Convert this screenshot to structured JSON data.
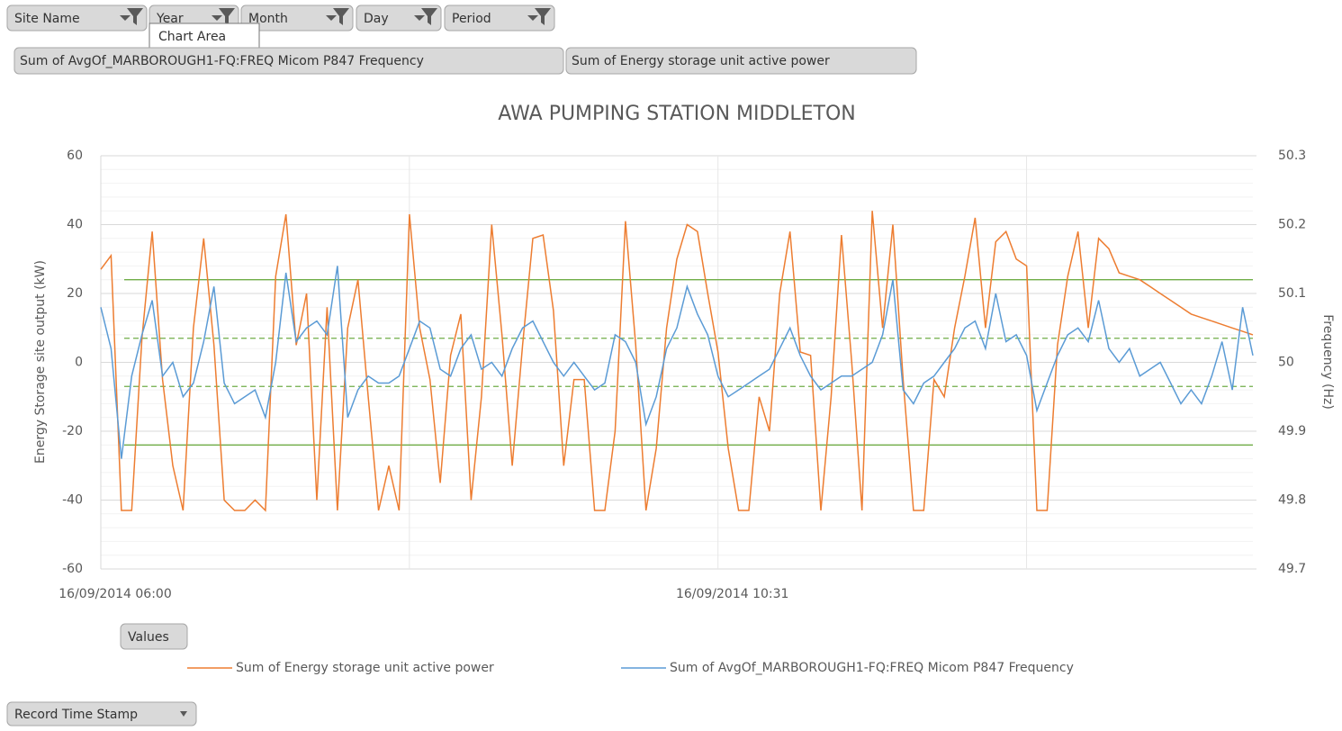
{
  "filters": [
    "Site Name",
    "Year",
    "Month",
    "Day",
    "Period"
  ],
  "tooltip": "Chart Area",
  "value_fields": [
    "Sum of AvgOf_MARBOROUGH1-FQ:FREQ Micom P847 Frequency",
    "Sum of Energy storage unit active power"
  ],
  "values_button": "Values",
  "axis_field": "Record Time Stamp",
  "chart_data": {
    "type": "line",
    "title": "AWA PUMPING STATION MIDDLETON",
    "y_label": "Energy Storage site output (kW)",
    "y2_label": "Frequency (Hz)",
    "ylim": [
      -60,
      60
    ],
    "yticks": [
      -60,
      -40,
      -20,
      0,
      20,
      40,
      60
    ],
    "y2lim": [
      49.7,
      50.3
    ],
    "y2ticks": [
      49.7,
      49.8,
      49.9,
      {
        "value": 50,
        "label": "50"
      },
      50.1,
      50.2,
      50.3
    ],
    "grid": true,
    "legend": "bottom",
    "categories": [
      "16/09/2014 06:00",
      null,
      null,
      null,
      null,
      null,
      null,
      null,
      null,
      null,
      null,
      null,
      null,
      null,
      null,
      null,
      null,
      null,
      null,
      null,
      null,
      null,
      null,
      null,
      null,
      null,
      null,
      null,
      null,
      null,
      null,
      null,
      null,
      null,
      null,
      null,
      null,
      null,
      null,
      null,
      null,
      null,
      null,
      null,
      null,
      null,
      null,
      null,
      null,
      null,
      null,
      null,
      null,
      null,
      null,
      null,
      null,
      null,
      null,
      null,
      "16/09/2014 10:31",
      null,
      null,
      null,
      null,
      null,
      null,
      null,
      null,
      null,
      null,
      null,
      null,
      null,
      null,
      null,
      null,
      null,
      null,
      null,
      null,
      null,
      null,
      null,
      null,
      null,
      null,
      null,
      null,
      null,
      null,
      null,
      null,
      null,
      null,
      null,
      null,
      null,
      null,
      null,
      null,
      null,
      null,
      null,
      null,
      null,
      null,
      null,
      null,
      null,
      null,
      null,
      null
    ],
    "series": [
      {
        "name": "Sum of Energy storage unit active power",
        "color": "#ed7d31",
        "axis": "y",
        "values": [
          27,
          31,
          -43,
          -43,
          7,
          38,
          -5,
          -30,
          -43,
          10,
          36,
          5,
          -40,
          -43,
          -43,
          -40,
          -43,
          25,
          43,
          5,
          20,
          -40,
          16,
          -43,
          10,
          24,
          -10,
          -43,
          -30,
          -43,
          43,
          10,
          -5,
          -35,
          2,
          14,
          -40,
          -10,
          40,
          8,
          -30,
          5,
          36,
          37,
          15,
          -30,
          -5,
          -5,
          -43,
          -43,
          -20,
          41,
          5,
          -43,
          -25,
          10,
          30,
          40,
          38,
          20,
          3,
          -25,
          -43,
          -43,
          -10,
          -20,
          20,
          38,
          3,
          2,
          -43,
          -10,
          37,
          0,
          -43,
          44,
          10,
          40,
          -5,
          -43,
          -43,
          -5,
          -10,
          10,
          25,
          42,
          10,
          35,
          38,
          30,
          28,
          -43,
          -43,
          5,
          25,
          38,
          10,
          36,
          33,
          26,
          25,
          24,
          22,
          20,
          18,
          16,
          14,
          13,
          12,
          11,
          10,
          9,
          8
        ]
      },
      {
        "name": "Sum of AvgOf_MARBOROUGH1-FQ:FREQ Micom P847 Frequency",
        "color": "#5b9bd5",
        "axis": "y2",
        "values": [
          50.08,
          50.02,
          49.86,
          49.98,
          50.04,
          50.09,
          49.98,
          50.0,
          49.95,
          49.97,
          50.03,
          50.11,
          49.97,
          49.94,
          49.95,
          49.96,
          49.92,
          50.0,
          50.13,
          50.03,
          50.05,
          50.06,
          50.04,
          50.14,
          49.92,
          49.96,
          49.98,
          49.97,
          49.97,
          49.98,
          50.02,
          50.06,
          50.05,
          49.99,
          49.98,
          50.02,
          50.04,
          49.99,
          50.0,
          49.98,
          50.02,
          50.05,
          50.06,
          50.03,
          50.0,
          49.98,
          50.0,
          49.98,
          49.96,
          49.97,
          50.04,
          50.03,
          50.0,
          49.91,
          49.95,
          50.02,
          50.05,
          50.11,
          50.07,
          50.04,
          49.98,
          49.95,
          49.96,
          49.97,
          49.98,
          49.99,
          50.02,
          50.05,
          50.01,
          49.98,
          49.96,
          49.97,
          49.98,
          49.98,
          49.99,
          50.0,
          50.04,
          50.12,
          49.96,
          49.94,
          49.97,
          49.98,
          50.0,
          50.02,
          50.05,
          50.06,
          50.02,
          50.1,
          50.03,
          50.04,
          50.01,
          49.93,
          49.97,
          50.01,
          50.04,
          50.05,
          50.03,
          50.09,
          50.02,
          50.0,
          50.02,
          49.98,
          49.99,
          50.0,
          49.97,
          49.94,
          49.96,
          49.94,
          49.98,
          50.03,
          49.96,
          50.08,
          50.01
        ]
      }
    ],
    "reference_lines": [
      {
        "value": 50.12,
        "axis": "y2",
        "color": "#70ad47",
        "style": "solid"
      },
      {
        "value": 50.035,
        "axis": "y2",
        "color": "#70ad47",
        "style": "dashed"
      },
      {
        "value": 49.965,
        "axis": "y2",
        "color": "#70ad47",
        "style": "dashed"
      },
      {
        "value": 49.88,
        "axis": "y2",
        "color": "#70ad47",
        "style": "solid"
      }
    ]
  }
}
